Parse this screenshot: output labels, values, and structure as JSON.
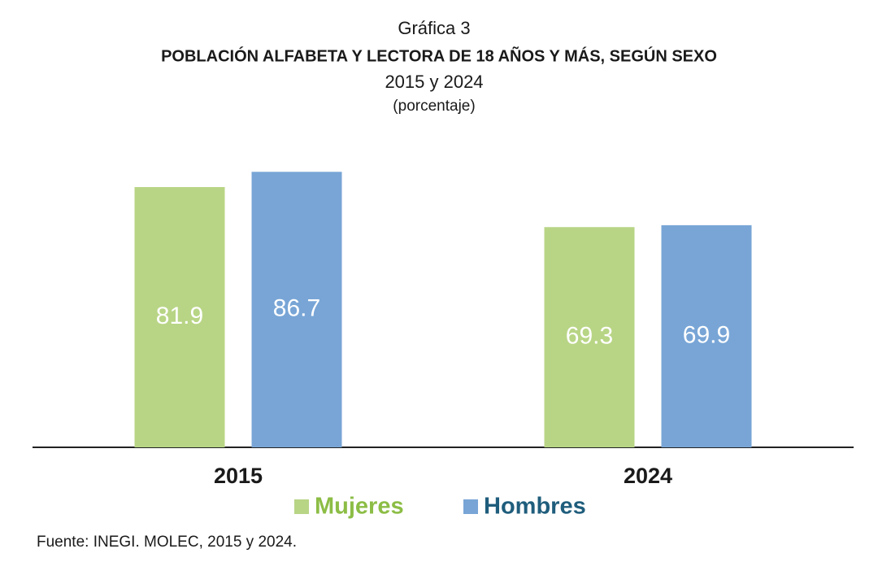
{
  "chart_data": {
    "type": "bar",
    "label": "Gráfica 3",
    "title": "POBLACIÓN ALFABETA Y LECTORA DE 18 AÑOS Y MÁS, SEGÚN SEXO",
    "subtitle": "2015 y 2024",
    "unit": "(porcentaje)",
    "categories": [
      "2015",
      "2024"
    ],
    "series": [
      {
        "name": "Mujeres",
        "color": "#b8d585",
        "values": [
          81.9,
          69.3
        ]
      },
      {
        "name": "Hombres",
        "color": "#78a5d6",
        "values": [
          86.7,
          69.9
        ]
      }
    ],
    "legend": "bottom",
    "source": "Fuente: INEGI. MOLEC, 2015 y 2024."
  }
}
